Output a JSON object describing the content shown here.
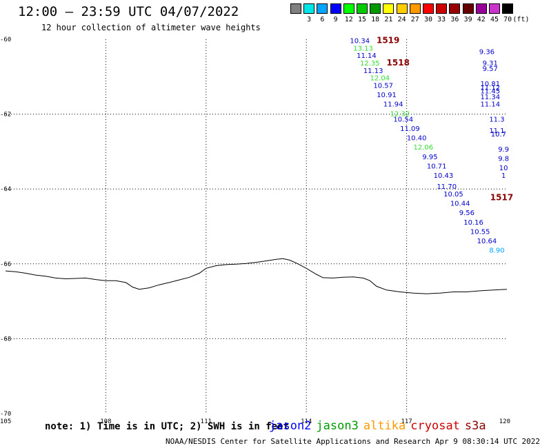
{
  "header": {
    "title": "12:00 – 23:59 UTC 04/07/2022",
    "subtitle": "12 hour collection of altimeter wave heights"
  },
  "color_scale": {
    "unit": "(ft)",
    "bins": [
      {
        "label": "",
        "color": "#808080"
      },
      {
        "label": "3",
        "color": "#00e5e5"
      },
      {
        "label": "6",
        "color": "#00a5ff"
      },
      {
        "label": "9",
        "color": "#0000ff"
      },
      {
        "label": "12",
        "color": "#00ff00"
      },
      {
        "label": "15",
        "color": "#00cc00"
      },
      {
        "label": "18",
        "color": "#009900"
      },
      {
        "label": "21",
        "color": "#ffff00"
      },
      {
        "label": "24",
        "color": "#ffcc00"
      },
      {
        "label": "27",
        "color": "#ff9900"
      },
      {
        "label": "30",
        "color": "#ff0000"
      },
      {
        "label": "33",
        "color": "#cc0000"
      },
      {
        "label": "36",
        "color": "#990000"
      },
      {
        "label": "39",
        "color": "#660000"
      },
      {
        "label": "42",
        "color": "#990099"
      },
      {
        "label": "45",
        "color": "#cc33cc"
      },
      {
        "label": "70",
        "color": "#000000"
      }
    ]
  },
  "chart_data": {
    "type": "scatter",
    "xlim": [
      105,
      120
    ],
    "ylim": [
      -70,
      -60
    ],
    "x_ticks": [
      "105",
      "108",
      "111",
      "114",
      "117",
      "120"
    ],
    "y_ticks": [
      "-60",
      "-62",
      "-64",
      "-66",
      "-68",
      "-70"
    ],
    "grid": true,
    "coastline": [
      [
        105.0,
        -66.19
      ],
      [
        105.3,
        -66.21
      ],
      [
        105.6,
        -66.25
      ],
      [
        105.9,
        -66.3
      ],
      [
        106.2,
        -66.33
      ],
      [
        106.5,
        -66.38
      ],
      [
        106.8,
        -66.4
      ],
      [
        107.1,
        -66.39
      ],
      [
        107.4,
        -66.38
      ],
      [
        107.7,
        -66.42
      ],
      [
        108.0,
        -66.45
      ],
      [
        108.3,
        -66.45
      ],
      [
        108.6,
        -66.5
      ],
      [
        108.8,
        -66.62
      ],
      [
        109.0,
        -66.68
      ],
      [
        109.3,
        -66.64
      ],
      [
        109.6,
        -66.56
      ],
      [
        109.9,
        -66.5
      ],
      [
        110.2,
        -66.43
      ],
      [
        110.5,
        -66.36
      ],
      [
        110.8,
        -66.25
      ],
      [
        111.0,
        -66.12
      ],
      [
        111.3,
        -66.05
      ],
      [
        111.6,
        -66.02
      ],
      [
        111.9,
        -66.01
      ],
      [
        112.2,
        -65.99
      ],
      [
        112.5,
        -65.96
      ],
      [
        112.8,
        -65.92
      ],
      [
        113.1,
        -65.88
      ],
      [
        113.3,
        -65.86
      ],
      [
        113.5,
        -65.9
      ],
      [
        113.7,
        -65.98
      ],
      [
        114.0,
        -66.12
      ],
      [
        114.3,
        -66.28
      ],
      [
        114.5,
        -66.37
      ],
      [
        114.8,
        -66.38
      ],
      [
        115.1,
        -66.36
      ],
      [
        115.4,
        -66.35
      ],
      [
        115.7,
        -66.38
      ],
      [
        115.9,
        -66.45
      ],
      [
        116.1,
        -66.6
      ],
      [
        116.4,
        -66.7
      ],
      [
        116.8,
        -66.75
      ],
      [
        117.2,
        -66.78
      ],
      [
        117.6,
        -66.8
      ],
      [
        118.0,
        -66.78
      ],
      [
        118.4,
        -66.75
      ],
      [
        118.8,
        -66.75
      ],
      [
        119.2,
        -66.72
      ],
      [
        119.6,
        -66.7
      ],
      [
        120.0,
        -66.68
      ]
    ],
    "track_labels": [
      {
        "text": "1519",
        "x": 116.1,
        "y": -60.1,
        "color": "#8b0000"
      },
      {
        "text": "1518",
        "x": 116.4,
        "y": -60.7,
        "color": "#8b0000"
      },
      {
        "text": "1517",
        "x": 119.5,
        "y": -64.3,
        "color": "#8b0000"
      }
    ],
    "series": [
      {
        "points": [
          {
            "x": 115.6,
            "y": -60.1,
            "v": "10.34",
            "c": "#0000cc"
          },
          {
            "x": 115.7,
            "y": -60.3,
            "v": "13.13",
            "c": "#33dd33"
          },
          {
            "x": 115.8,
            "y": -60.5,
            "v": "11.14",
            "c": "#0000cc"
          },
          {
            "x": 115.9,
            "y": -60.7,
            "v": "12.35",
            "c": "#33dd33"
          },
          {
            "x": 116.0,
            "y": -60.9,
            "v": "11.13",
            "c": "#0000cc"
          },
          {
            "x": 116.2,
            "y": -61.1,
            "v": "12.04",
            "c": "#33dd33"
          },
          {
            "x": 116.3,
            "y": -61.3,
            "v": "10.57",
            "c": "#0000cc"
          },
          {
            "x": 116.4,
            "y": -61.55,
            "v": "10.91",
            "c": "#0000cc"
          },
          {
            "x": 116.6,
            "y": -61.8,
            "v": "11.94",
            "c": "#0000cc"
          },
          {
            "x": 116.8,
            "y": -62.05,
            "v": "12.32",
            "c": "#33dd33"
          },
          {
            "x": 116.9,
            "y": -62.2,
            "v": "10.54",
            "c": "#0000cc"
          },
          {
            "x": 117.1,
            "y": -62.45,
            "v": "11.09",
            "c": "#0000cc"
          },
          {
            "x": 117.3,
            "y": -62.7,
            "v": "10.40",
            "c": "#0000cc"
          },
          {
            "x": 117.5,
            "y": -62.95,
            "v": "12.06",
            "c": "#33dd33"
          },
          {
            "x": 117.7,
            "y": -63.2,
            "v": "9.95",
            "c": "#0000cc"
          },
          {
            "x": 117.9,
            "y": -63.45,
            "v": "10.71",
            "c": "#0000cc"
          },
          {
            "x": 118.1,
            "y": -63.7,
            "v": "10.43",
            "c": "#0000cc"
          },
          {
            "x": 118.2,
            "y": -64.0,
            "v": "11.70",
            "c": "#0000cc"
          },
          {
            "x": 118.4,
            "y": -64.2,
            "v": "10.05",
            "c": "#0000cc"
          },
          {
            "x": 118.6,
            "y": -64.45,
            "v": "10.44",
            "c": "#0000cc"
          },
          {
            "x": 118.8,
            "y": -64.7,
            "v": "9.56",
            "c": "#0000cc"
          },
          {
            "x": 119.0,
            "y": -64.95,
            "v": "10.16",
            "c": "#0000cc"
          },
          {
            "x": 119.2,
            "y": -65.2,
            "v": "10.55",
            "c": "#0000cc"
          },
          {
            "x": 119.4,
            "y": -65.45,
            "v": "10.64",
            "c": "#0000cc"
          },
          {
            "x": 119.7,
            "y": -65.7,
            "v": "8.90",
            "c": "#00a5ff"
          }
        ]
      },
      {
        "points": [
          {
            "x": 119.4,
            "y": -60.4,
            "v": "9.36",
            "c": "#0000cc"
          },
          {
            "x": 119.5,
            "y": -60.7,
            "v": "9.31",
            "c": "#0000cc"
          },
          {
            "x": 119.5,
            "y": -60.85,
            "v": "9.57",
            "c": "#0000cc"
          },
          {
            "x": 119.5,
            "y": -61.25,
            "v": "10.81",
            "c": "#0000cc"
          },
          {
            "x": 119.5,
            "y": -61.35,
            "v": "11.12",
            "c": "#0000cc"
          },
          {
            "x": 119.5,
            "y": -61.45,
            "v": "11.45",
            "c": "#0000cc"
          },
          {
            "x": 119.5,
            "y": -61.6,
            "v": "11.34",
            "c": "#0000cc"
          },
          {
            "x": 119.5,
            "y": -61.8,
            "v": "11.14",
            "c": "#0000cc"
          },
          {
            "x": 119.7,
            "y": -62.2,
            "v": "11.3",
            "c": "#0000cc"
          },
          {
            "x": 119.7,
            "y": -62.5,
            "v": "11.1",
            "c": "#0000cc"
          },
          {
            "x": 119.75,
            "y": -62.6,
            "v": "10.7",
            "c": "#0000cc"
          },
          {
            "x": 119.9,
            "y": -63.0,
            "v": "9.9",
            "c": "#0000cc"
          },
          {
            "x": 119.9,
            "y": -63.25,
            "v": "9.8",
            "c": "#0000cc"
          },
          {
            "x": 119.9,
            "y": -63.5,
            "v": "10",
            "c": "#0000cc"
          },
          {
            "x": 119.9,
            "y": -63.7,
            "v": "1",
            "c": "#0000cc"
          }
        ]
      }
    ]
  },
  "footer": {
    "note": "note: 1) Time is in UTC; 2) SWH is in feet",
    "satellites": [
      {
        "name": "jason2",
        "color": "#0000ff"
      },
      {
        "name": "jason3",
        "color": "#009900"
      },
      {
        "name": "altika",
        "color": "#ff9900"
      },
      {
        "name": "cryosat",
        "color": "#cc0000"
      },
      {
        "name": "s3a",
        "color": "#8b0000"
      }
    ],
    "credit": "NOAA/NESDIS Center for Satellite Applications and Research   Apr  9 08:30:14 UTC 2022"
  }
}
